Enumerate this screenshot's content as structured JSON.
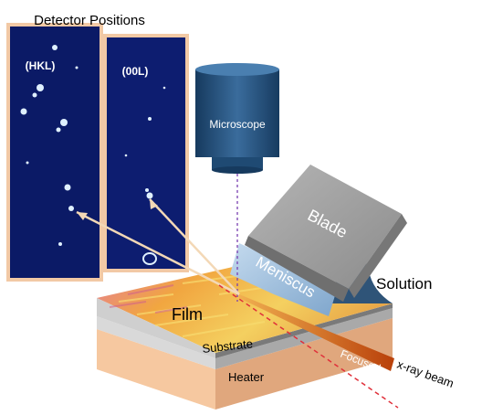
{
  "labels": {
    "detector_positions": "Detector Positions",
    "hkl": "(HKL)",
    "ool": "(00L)",
    "microscope": "Microscope",
    "blade": "Blade",
    "meniscus": "Meniscus",
    "solution": "Solution",
    "film": "Film",
    "substrate": "Substrate",
    "heater": "Heater",
    "focused": "Focused",
    "xray_beam": "x-ray  beam"
  },
  "colors": {
    "detector_bg": "#0b1a66",
    "detector_frame": "#f2c9a5",
    "microscope_body": "#2a5886",
    "blade_face": "#9a9a9a",
    "meniscus": "#9bbbd8",
    "solution": "#2f5478",
    "film": "#f0b64a",
    "substrate": "#d9d9d9",
    "heater": "#f6c8a0",
    "beam_dashed": "#e0303a",
    "focused_beam": "#c0500a",
    "diffraction_rays": "#f3d8b6",
    "microscope_line": "#7a3fb0"
  }
}
